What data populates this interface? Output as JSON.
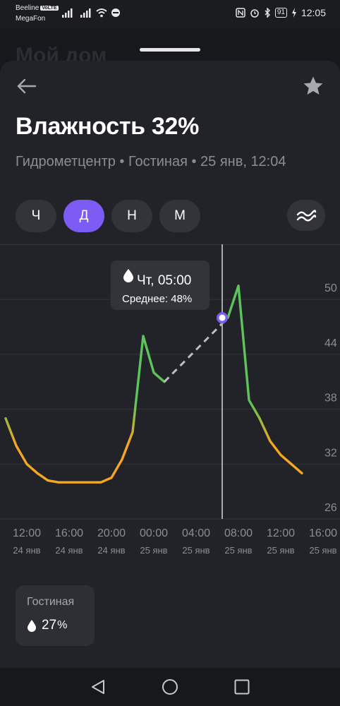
{
  "status_bar": {
    "carrier1": "Beeline",
    "volte": "VoLTE",
    "carrier2": "MegaFon",
    "battery": "91",
    "time": "12:05"
  },
  "background_title": "Мой дом",
  "header": {
    "back_icon": "arrow-left-icon",
    "favorite_icon": "star-icon",
    "title": "Влажность 32%",
    "subtitle": "Гидрометцентр • Гостиная • 25 янв, 12:04"
  },
  "periods": [
    {
      "label": "Ч",
      "active": false
    },
    {
      "label": "Д",
      "active": true
    },
    {
      "label": "Н",
      "active": false
    },
    {
      "label": "М",
      "active": false
    }
  ],
  "compare_icon": "wave-compare-icon",
  "tooltip": {
    "icon": "droplet-icon",
    "time": "Чт, 05:00",
    "value": "Среднее: 48%"
  },
  "room_card": {
    "name": "Гостиная",
    "icon": "droplet-icon",
    "value": "27",
    "unit": "%"
  },
  "colors": {
    "accent": "#7c5cf4",
    "line_low": "#f5a623",
    "line_high": "#5cc45a",
    "gap_line": "#bdbdbd"
  },
  "chart_data": {
    "type": "line",
    "y_ticks": [
      26,
      32,
      38,
      44,
      50
    ],
    "ylim": [
      26,
      56
    ],
    "x_ticks": [
      {
        "time": "12:00",
        "date": "24 янв"
      },
      {
        "time": "16:00",
        "date": "24 янв"
      },
      {
        "time": "20:00",
        "date": "24 янв"
      },
      {
        "time": "00:00",
        "date": "25 янв"
      },
      {
        "time": "04:00",
        "date": "25 янв"
      },
      {
        "time": "08:00",
        "date": "25 янв"
      },
      {
        "time": "12:00",
        "date": "25 янв"
      },
      {
        "time": "16:00",
        "date": "25 янв"
      }
    ],
    "segments": [
      {
        "kind": "measured",
        "x": [
          "24 янв 10:00",
          "24 янв 11:00",
          "24 янв 12:00",
          "24 янв 13:00",
          "24 янв 14:00",
          "24 янв 15:00",
          "24 янв 16:00",
          "24 янв 17:00",
          "24 янв 18:00",
          "24 янв 19:00",
          "24 янв 20:00",
          "24 янв 21:00",
          "24 янв 22:00",
          "24 янв 23:00",
          "25 янв 00:00",
          "25 янв 01:00"
        ],
        "y": [
          37,
          34,
          32,
          31,
          30.2,
          30,
          30,
          30,
          30,
          30,
          30.5,
          32.5,
          35.5,
          46,
          42,
          41
        ]
      },
      {
        "kind": "gap",
        "x": [
          "25 янв 01:00",
          "25 янв 07:00"
        ],
        "y": [
          41,
          48
        ]
      },
      {
        "kind": "measured",
        "x": [
          "25 янв 07:00",
          "25 янв 08:00",
          "25 янв 09:00",
          "25 янв 10:00",
          "25 янв 11:00",
          "25 янв 12:00",
          "25 янв 13:00",
          "25 янв 14:00"
        ],
        "y": [
          48,
          51.5,
          39,
          37,
          34.5,
          33,
          32,
          31
        ]
      }
    ],
    "cursor": {
      "x": "25 янв 05:00",
      "y": 48
    }
  }
}
